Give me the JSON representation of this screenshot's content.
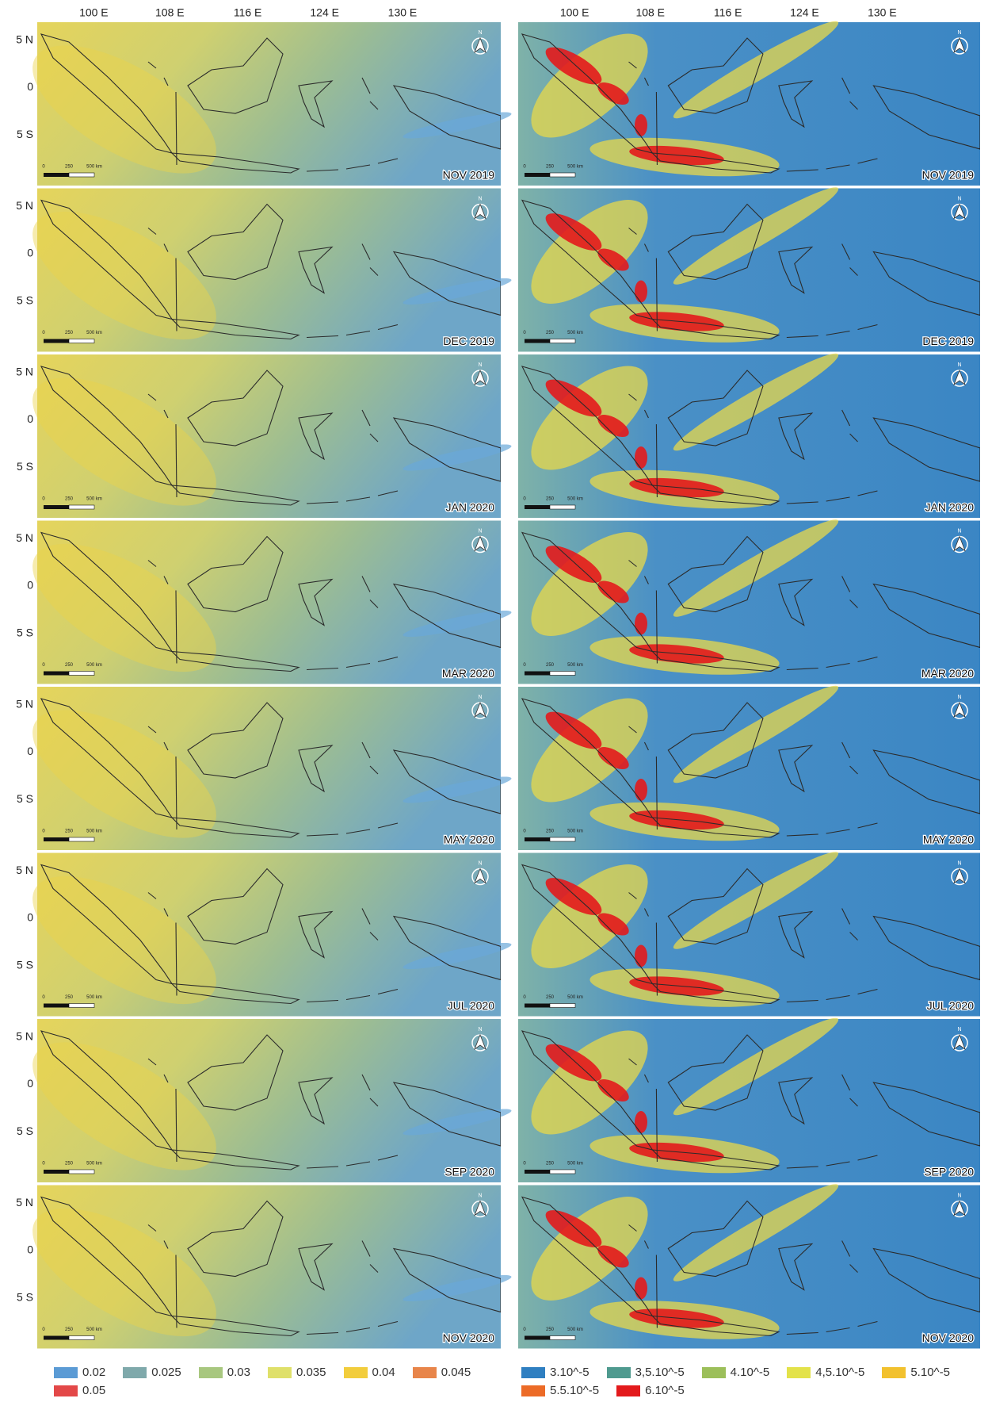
{
  "longitude_labels": [
    "100 E",
    "108 E",
    "116 E",
    "124 E",
    "130 E"
  ],
  "latitude_labels": [
    "5 N",
    "0",
    "5 S"
  ],
  "scale_bar_labels": [
    "0",
    "250",
    "500 km"
  ],
  "north_label": "N",
  "panels": [
    "NOV 2019",
    "DEC 2019",
    "JAN 2020",
    "MAR 2020",
    "MAY 2020",
    "JUL 2020",
    "SEP 2020",
    "NOV 2020"
  ],
  "left_legend": [
    {
      "label": "0.02",
      "color": "#5b9bd5"
    },
    {
      "label": "0.025",
      "color": "#7fa9ab"
    },
    {
      "label": "0.03",
      "color": "#a8c77f"
    },
    {
      "label": "0.035",
      "color": "#dfe06a"
    },
    {
      "label": "0.04",
      "color": "#f2cd3c"
    },
    {
      "label": "0.045",
      "color": "#e8854a"
    },
    {
      "label": "0.05",
      "color": "#e34848"
    }
  ],
  "right_legend": [
    {
      "label": "3.10^-5",
      "color": "#2f7fc1"
    },
    {
      "label": "3,5.10^-5",
      "color": "#4f9a8f"
    },
    {
      "label": "4.10^-5",
      "color": "#9cbf5a"
    },
    {
      "label": "4,5.10^-5",
      "color": "#e3e24a"
    },
    {
      "label": "5.10^-5",
      "color": "#f2c12e"
    },
    {
      "label": "5.5.10^-5",
      "color": "#ec6b27"
    },
    {
      "label": "6.10^-5",
      "color": "#e31a1c"
    }
  ]
}
